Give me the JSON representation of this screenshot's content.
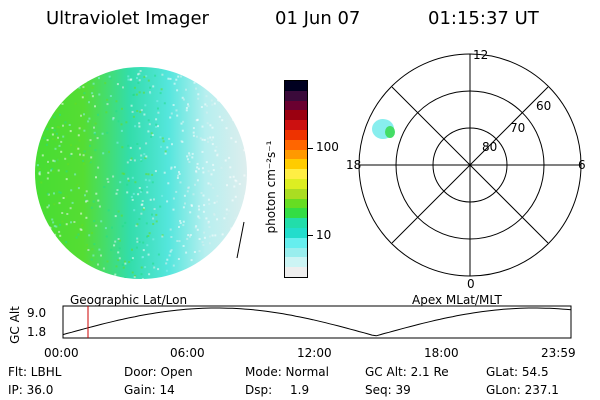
{
  "header": {
    "instrument": "Ultraviolet Imager",
    "date": "01 Jun 07",
    "time": "01:15:37 UT"
  },
  "colorbar": {
    "unit_label": "photon cm⁻²s⁻¹",
    "ticks": [
      "100",
      "10"
    ],
    "colors": [
      "#000020",
      "#3a0a3a",
      "#6a0030",
      "#9a0010",
      "#cc1010",
      "#ee3300",
      "#ff6600",
      "#ff9900",
      "#ffcc00",
      "#ffee44",
      "#ddee22",
      "#aadd22",
      "#66dd22",
      "#33dd44",
      "#22ddaa",
      "#22ddcc",
      "#66eeee",
      "#99eeee",
      "#ccf4f4",
      "#eeeeee"
    ]
  },
  "polar": {
    "mlt_labels": [
      "12",
      "18",
      "6",
      "0"
    ],
    "lat_labels": [
      "60",
      "70",
      "80"
    ]
  },
  "map_captions": {
    "left": "Geographic Lat/Lon",
    "right": "Apex MLat/MLT"
  },
  "altitude_plot": {
    "ylabel": "GC Alt",
    "y_ticks": [
      "9.0",
      "1.8"
    ],
    "x_ticks": [
      "00:00",
      "06:00",
      "12:00",
      "18:00",
      "23:59"
    ]
  },
  "info": {
    "flt": "Flt: LBHL",
    "ip": "IP: 36.0",
    "door": "Door: Open",
    "gain": "Gain: 14",
    "mode": "Mode: Normal",
    "dsp_label": "Dsp:",
    "dsp_value": "1.9",
    "gcalt": "GC Alt: 2.1 Re",
    "seq": "Seq: 39",
    "glat": "GLat:  54.5",
    "glon": "GLon: 237.1"
  },
  "style": {
    "accent_marker": "#cc0000",
    "grass_green": "#55dd22",
    "cyan": "#33ddcc"
  }
}
